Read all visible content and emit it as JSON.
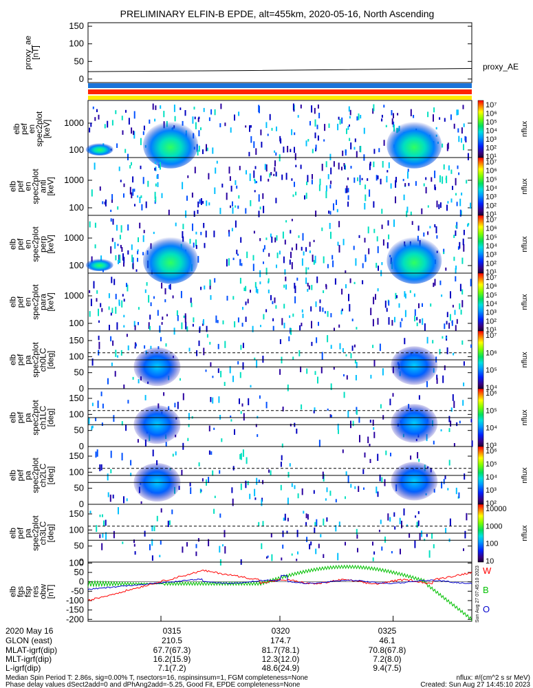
{
  "title": "PRELIMINARY ELFIN-B EPDE, alt=455km, 2020-05-16, North Ascending",
  "colors": {
    "bar_blue": "#1a73d9",
    "bar_red": "#ff2200",
    "bar_yellow": "#ffe800",
    "series_w": "#ff0000",
    "series_b": "#00c000",
    "series_o": "#0000cc"
  },
  "chart_data": [
    {
      "type": "line",
      "panel_label": "proxy_ae\n[nT]",
      "y_ticks": [
        "150",
        "100",
        "50",
        "0"
      ],
      "ylim": [
        -10,
        160
      ],
      "series": [
        {
          "name": "proxy_AE",
          "x": [
            0,
            0.4,
            1.0
          ],
          "y": [
            21,
            24,
            30
          ]
        }
      ]
    },
    {
      "type": "heatmap",
      "panel_label": "elb\npef\nen\nspec2plot\n[keV]",
      "y_ticks": [
        "1000",
        "100"
      ],
      "colorbar_label": "nflux",
      "colorbar_ticks": [
        "10⁷",
        "10⁶",
        "10⁵",
        "10⁴",
        "10³",
        "10²",
        "10¹"
      ]
    },
    {
      "type": "heatmap",
      "panel_label": "elb\npef\nen\nspec2plot\nanti\n[keV]",
      "y_ticks": [
        "1000",
        "100"
      ],
      "colorbar_label": "nflux",
      "colorbar_ticks": [
        "10⁷",
        "10⁶",
        "10⁵",
        "10⁴",
        "10³",
        "10²",
        "10¹"
      ]
    },
    {
      "type": "heatmap",
      "panel_label": "elb\npef\nen\nspec2plot\nperp\n[keV]",
      "y_ticks": [
        "1000",
        "100"
      ],
      "colorbar_label": "nflux",
      "colorbar_ticks": [
        "10⁷",
        "10⁶",
        "10⁵",
        "10⁴",
        "10³",
        "10²",
        "10¹"
      ]
    },
    {
      "type": "heatmap",
      "panel_label": "elb\npef\nen\nspec2plot\npara\n[keV]",
      "y_ticks": [
        "1000",
        "100"
      ],
      "colorbar_label": "nflux",
      "colorbar_ticks": [
        "10⁷",
        "10⁶",
        "10⁵",
        "10⁴",
        "10³",
        "10²",
        "10¹"
      ]
    },
    {
      "type": "heatmap",
      "panel_label": "elb\npef\npa\nspec2plot\nch0LC\n[deg]",
      "y_ticks": [
        "150",
        "100",
        "50",
        "0"
      ],
      "ylim": [
        0,
        180
      ],
      "colorbar_label": "nflux",
      "colorbar_ticks": [
        "10⁷",
        "10⁶",
        "10⁵",
        "10⁴"
      ]
    },
    {
      "type": "heatmap",
      "panel_label": "elb\npef\npa\nspec2plot\nch1LC\n[deg]",
      "y_ticks": [
        "150",
        "100",
        "50",
        "0"
      ],
      "ylim": [
        0,
        180
      ],
      "colorbar_label": "nflux",
      "colorbar_ticks": [
        "10⁶",
        "10⁵",
        "10⁴",
        "10³"
      ]
    },
    {
      "type": "heatmap",
      "panel_label": "elb\npef\npa\nspec2plot\nch2LC\n[deg]",
      "y_ticks": [
        "150",
        "100",
        "50",
        "0"
      ],
      "ylim": [
        0,
        180
      ],
      "colorbar_label": "nflux",
      "colorbar_ticks": [
        "10⁶",
        "10⁵",
        "10⁴",
        "10³",
        "10²"
      ]
    },
    {
      "type": "heatmap",
      "panel_label": "elb\npef\npa\nspec2plot\nch3LC\n[deg]",
      "y_ticks": [
        "150",
        "100",
        "50",
        "0"
      ],
      "ylim": [
        0,
        180
      ],
      "colorbar_label": "nflux",
      "colorbar_ticks": [
        "10000",
        "1000",
        "100",
        "10"
      ]
    },
    {
      "type": "line",
      "panel_label": "elb\nfgs\nfsp\nres\nobw\n[nT]",
      "y_ticks": [
        "100",
        "50",
        "0",
        "-50",
        "-100",
        "-150",
        "-200"
      ],
      "ylim": [
        -210,
        105
      ],
      "series_labels": [
        "W",
        "B",
        "O"
      ],
      "time_ticks": [
        "0315",
        "0320",
        "0325"
      ]
    }
  ],
  "footer": {
    "row_labels": [
      "2020 May 16",
      "GLON (east)",
      "MLAT-igrf(dip)",
      "MLT-igrf(dip)",
      "L-igrf(dip)"
    ],
    "columns": [
      [
        "0315",
        "210.5",
        "67.7(67.3)",
        "16.2(15.9)",
        "7.1(7.2)"
      ],
      [
        "0320",
        "174.7",
        "81.7(78.1)",
        "12.3(12.0)",
        "48.6(24.9)"
      ],
      [
        "0325",
        "46.1",
        "70.8(67.8)",
        "7.2(8.0)",
        "9.4(7.5)"
      ]
    ],
    "note1": "Median Spin Period T: 2.86s, sig=0.00% T, nsectors=16, nspinsinsum=1, FGM completeness=None",
    "note2": "Phase delay values dSect2add=0 and dPhAng2add=-5.25, Good Fit, EPDE completeness=None",
    "units": "nflux: #/(cm^2 s sr MeV)",
    "created": "Created: Sun Aug 27 14:45:10 2023",
    "side_stamp": "Sun Aug 27 07:45:10 2023"
  }
}
